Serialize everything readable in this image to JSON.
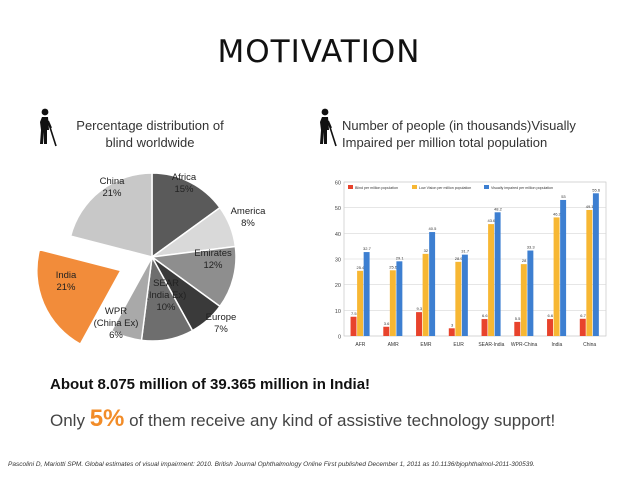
{
  "page": {
    "title": "MOTIVATION",
    "left_caption_line1": "Percentage distribution of",
    "left_caption_line2": "blind worldwide",
    "right_caption_line1": "Number of people (in thousands)Visually",
    "right_caption_line2": "Impaired per million total population",
    "stat_line": "About 8.075 million of 39.365 million in India!",
    "only_prefix": "Only ",
    "only_percent": "5%",
    "only_suffix": " of them receive any kind of assistive technology support!",
    "citation": "Pascolini D, Mariotti SPM. Global estimates of visual impairment: 2010. British Journal Ophthalmology Online First published December 1, 2011 as 10.1136/bjophthalmol-2011-300539."
  },
  "icons": {
    "caption_icon": "blind-person-with-cane-icon"
  },
  "colors": {
    "highlight": "#f28c28",
    "bar_blind": "#e8432c",
    "bar_low_vision": "#f7b733",
    "bar_visually_impaired": "#3d7fd1"
  },
  "chart_data": [
    {
      "type": "pie",
      "title": "",
      "slices": [
        {
          "label": "Africa",
          "value": 15,
          "value_label": "15%",
          "color": "#5a5a5a"
        },
        {
          "label": "America",
          "value": 8,
          "value_label": "8%",
          "color": "#d9d9d9"
        },
        {
          "label": "Emirates",
          "value": 12,
          "value_label": "12%",
          "color": "#8e8e8e"
        },
        {
          "label": "Europe",
          "value": 7,
          "value_label": "7%",
          "color": "#3a3a3a"
        },
        {
          "label": "SEAR",
          "label_line2": "(India Ex)",
          "value": 10,
          "value_label": "10%",
          "color": "#6e6e6e"
        },
        {
          "label": "WPR",
          "label_line2": "(China Ex)",
          "value": 6,
          "value_label": "6%",
          "color": "#a9a9a9"
        },
        {
          "label": "India",
          "value": 21,
          "value_label": "21%",
          "color": "#f28c3a",
          "exploded": true
        },
        {
          "label": "China",
          "value": 21,
          "value_label": "21%",
          "color": "#c8c8c8"
        }
      ]
    },
    {
      "type": "bar",
      "title": "",
      "categories": [
        "AFR",
        "AMR",
        "EMR",
        "EUR",
        "SEAR-India",
        "WPR-China",
        "India",
        "China"
      ],
      "series": [
        {
          "name": "Blind per million population",
          "values": [
            7.5,
            3.6,
            9.3,
            3,
            6.6,
            5.5,
            6.6,
            6.7
          ],
          "color": "#e8432c"
        },
        {
          "name": "Low Vision per million population",
          "values": [
            25.4,
            25.6,
            32,
            28.9,
            43.6,
            28,
            46.2,
            49.1
          ],
          "color": "#f7b733"
        },
        {
          "name": "Visually impaired per million population",
          "values": [
            32.7,
            29.1,
            40.5,
            31.7,
            48.2,
            33.3,
            53,
            55.6
          ],
          "color": "#3d7fd1"
        }
      ],
      "data_labels": [
        [
          "7.5",
          "25.4",
          "32.7"
        ],
        [
          "3.6",
          "25.6",
          "29.1"
        ],
        [
          "9.3",
          "32",
          "40.5"
        ],
        [
          "3",
          "28.9",
          "31.7"
        ],
        [
          "6.6",
          "43.6",
          "48.2"
        ],
        [
          "5.5",
          "28",
          "33.3"
        ],
        [
          "6.6",
          "46.2",
          "53"
        ],
        [
          "6.7",
          "49.1",
          "55.6"
        ]
      ],
      "y_ticks": [
        "0",
        "10",
        "20",
        "30",
        "40",
        "50",
        "60"
      ],
      "ylim": [
        0,
        60
      ],
      "grid": true,
      "legend_position": "top"
    }
  ]
}
